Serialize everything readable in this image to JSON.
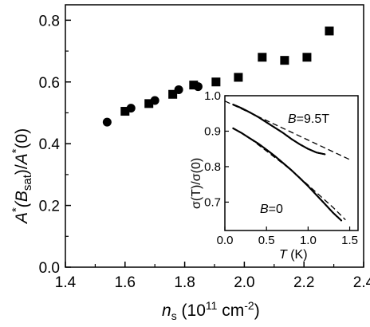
{
  "chart_data": [
    {
      "type": "scatter",
      "xlabel": "n_s (10^11 cm^-2)",
      "ylabel": "A*(B_sat)/A*(0)",
      "xlabel_parts": {
        "sym": "n",
        "sub": "s",
        "units": " (10",
        "exp1": "11",
        "units2": " cm",
        "exp2": "-2",
        "close": ")"
      },
      "ylabel_parts": {
        "a1": "A",
        "star1": "*",
        "paren_open": "(B",
        "sub": "sat",
        "paren_close": ")/",
        "a2": "A",
        "star2": "*",
        "tail": "(0)"
      },
      "xlim": [
        1.4,
        2.4
      ],
      "ylim": [
        0.0,
        0.85
      ],
      "xticks": [
        1.4,
        1.6,
        1.8,
        2.0,
        2.2,
        2.4
      ],
      "xtick_labels": [
        "1.4",
        "1.6",
        "1.8",
        "2.0",
        "2.2",
        "2.4"
      ],
      "yticks": [
        0.0,
        0.2,
        0.4,
        0.6,
        0.8
      ],
      "ytick_labels": [
        "0.0",
        "0.2",
        "0.4",
        "0.6",
        "0.8"
      ],
      "series": [
        {
          "marker": "circle",
          "points": [
            {
              "x": 1.54,
              "y": 0.47
            },
            {
              "x": 1.62,
              "y": 0.515
            },
            {
              "x": 1.7,
              "y": 0.54
            },
            {
              "x": 1.78,
              "y": 0.575
            },
            {
              "x": 1.845,
              "y": 0.585
            }
          ]
        },
        {
          "marker": "square",
          "points": [
            {
              "x": 1.6,
              "y": 0.505
            },
            {
              "x": 1.68,
              "y": 0.53
            },
            {
              "x": 1.76,
              "y": 0.56
            },
            {
              "x": 1.83,
              "y": 0.59
            },
            {
              "x": 1.905,
              "y": 0.6
            },
            {
              "x": 1.98,
              "y": 0.615
            },
            {
              "x": 2.06,
              "y": 0.68
            },
            {
              "x": 2.135,
              "y": 0.67
            },
            {
              "x": 2.21,
              "y": 0.68
            },
            {
              "x": 2.285,
              "y": 0.765
            }
          ]
        }
      ],
      "grid": false,
      "legend": "none"
    },
    {
      "type": "line",
      "inset": true,
      "xlabel": "T (K)",
      "ylabel": "σ(T)/σ(0)",
      "xlabel_parts": {
        "sym": "T",
        "units": " (K)"
      },
      "ylabel_parts": {
        "text": "σ(T)/σ(0)"
      },
      "xlim": [
        0.0,
        1.6
      ],
      "ylim": [
        0.62,
        1.0
      ],
      "xticks": [
        0.0,
        0.5,
        1.0,
        1.5
      ],
      "xtick_labels": [
        "0.0",
        "0.5",
        "1.0",
        "1.5"
      ],
      "yticks": [
        0.7,
        0.8,
        0.9,
        1.0
      ],
      "ytick_labels": [
        "0.7",
        "0.8",
        "0.9",
        "1.0"
      ],
      "series": [
        {
          "label_sym": "B",
          "label_val": "=9.5T",
          "style": "dots",
          "x": [
            0.1,
            0.2,
            0.3,
            0.4,
            0.5,
            0.6,
            0.7,
            0.8,
            0.9,
            1.0,
            1.1,
            1.2
          ],
          "y": [
            0.975,
            0.965,
            0.953,
            0.94,
            0.925,
            0.91,
            0.895,
            0.878,
            0.863,
            0.85,
            0.84,
            0.835
          ]
        },
        {
          "style": "dashed",
          "x": [
            0.0,
            0.5,
            1.0,
            1.5
          ],
          "y": [
            0.985,
            0.93,
            0.875,
            0.82
          ]
        },
        {
          "label_sym": "B",
          "label_val": "=0",
          "style": "dots",
          "x": [
            0.1,
            0.2,
            0.3,
            0.4,
            0.5,
            0.6,
            0.7,
            0.8,
            0.9,
            1.0,
            1.1,
            1.2,
            1.3,
            1.4
          ],
          "y": [
            0.908,
            0.895,
            0.88,
            0.865,
            0.848,
            0.83,
            0.81,
            0.79,
            0.768,
            0.745,
            0.72,
            0.695,
            0.67,
            0.648
          ]
        },
        {
          "style": "dashed",
          "x": [
            0.3,
            0.8,
            1.3,
            1.45
          ],
          "y": [
            0.88,
            0.79,
            0.685,
            0.65
          ]
        }
      ],
      "grid": false,
      "legend": "none"
    }
  ]
}
